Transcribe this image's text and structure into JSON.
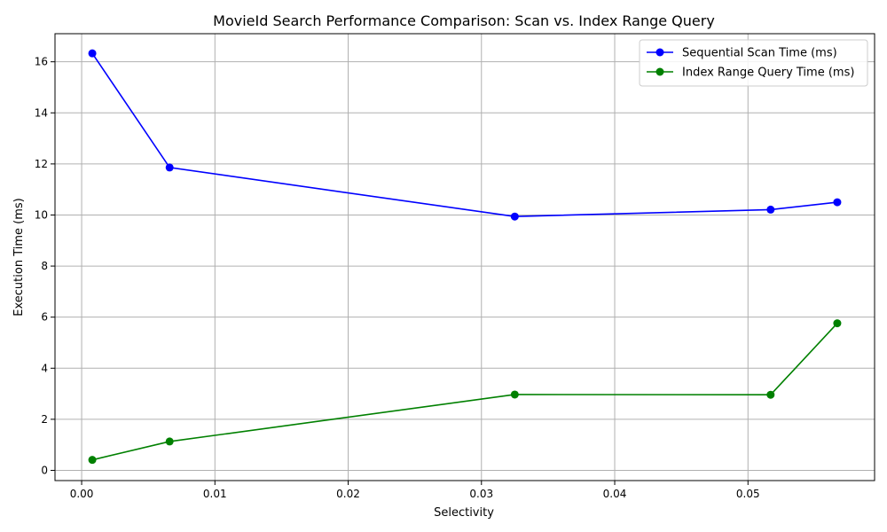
{
  "chart_data": {
    "type": "line",
    "title": "MovieId Search Performance Comparison: Scan vs. Index Range Query",
    "xlabel": "Selectivity",
    "ylabel": "Execution Time (ms)",
    "xlim": [
      -0.002,
      0.0595
    ],
    "ylim": [
      -0.4,
      17.1
    ],
    "xticks": [
      0.0,
      0.01,
      0.02,
      0.03,
      0.04,
      0.05
    ],
    "xtick_labels": [
      "0.00",
      "0.01",
      "0.02",
      "0.03",
      "0.04",
      "0.05"
    ],
    "yticks": [
      0,
      2,
      4,
      6,
      8,
      10,
      12,
      14,
      16
    ],
    "ytick_labels": [
      "0",
      "2",
      "4",
      "6",
      "8",
      "10",
      "12",
      "14",
      "16"
    ],
    "grid": true,
    "legend_position": "top-right",
    "x": [
      0.0008,
      0.0066,
      0.0325,
      0.0517,
      0.0567
    ],
    "series": [
      {
        "name": "Sequential Scan Time (ms)",
        "color": "#0000ff",
        "marker": "circle",
        "values": [
          16.33,
          11.86,
          9.94,
          10.21,
          10.5
        ]
      },
      {
        "name": "Index Range Query Time (ms)",
        "color": "#008000",
        "marker": "circle",
        "values": [
          0.41,
          1.13,
          2.97,
          2.96,
          5.76
        ]
      }
    ]
  }
}
